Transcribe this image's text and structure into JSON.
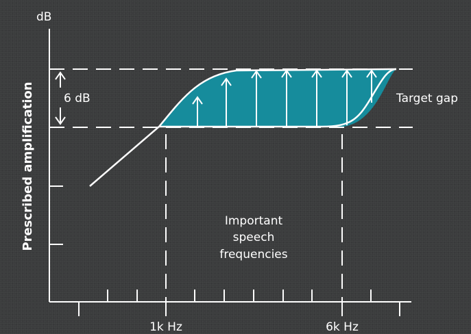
{
  "diagram": {
    "y_unit": "dB",
    "y_axis_label": "Prescribed amplification",
    "gap_label": "6 dB",
    "target_gap_label": "Target gap",
    "x_tick_1k": "1k Hz",
    "x_tick_6k": "6k Hz",
    "region_label_lines": [
      "Important",
      "speech",
      "frequencies"
    ],
    "colors": {
      "background": "#3b3c3d",
      "gap_fill": "#168c9c",
      "lines": "#ffffff"
    }
  }
}
